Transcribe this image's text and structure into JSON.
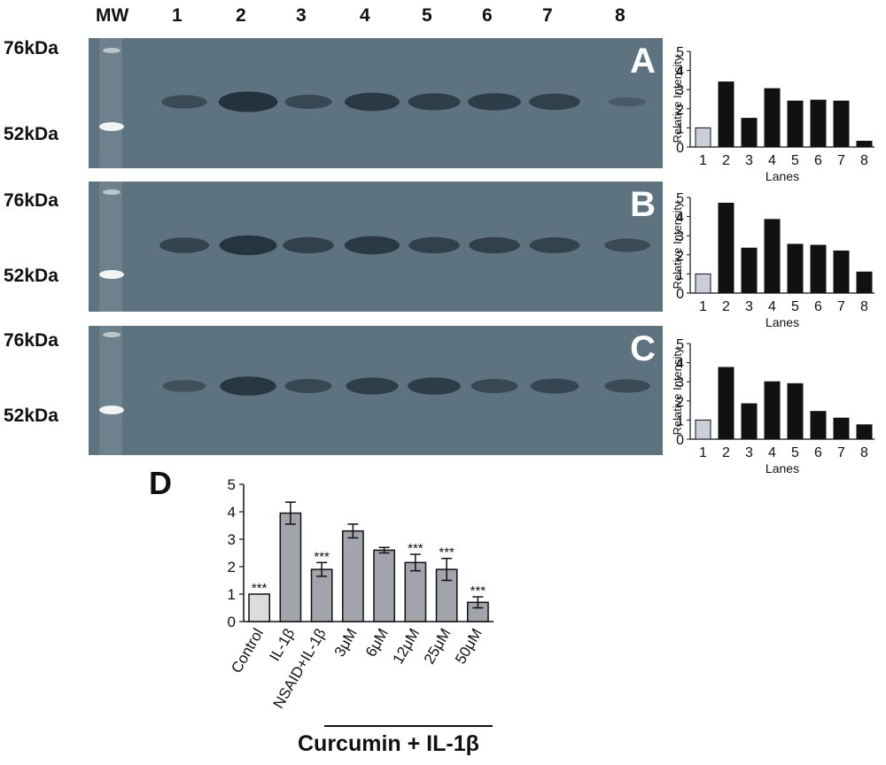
{
  "lane_header": {
    "mw": "MW",
    "lanes": [
      "1",
      "2",
      "3",
      "4",
      "5",
      "6",
      "7",
      "8"
    ]
  },
  "molecular_weights": {
    "upper": "76kDa",
    "lower": "52kDa"
  },
  "blots": [
    {
      "panel": "A",
      "band_intensity": [
        0.45,
        0.95,
        0.5,
        0.8,
        0.7,
        0.72,
        0.65,
        0.15
      ]
    },
    {
      "panel": "B",
      "band_intensity": [
        0.6,
        0.9,
        0.65,
        0.8,
        0.65,
        0.65,
        0.62,
        0.45
      ]
    },
    {
      "panel": "C",
      "band_intensity": [
        0.35,
        0.85,
        0.5,
        0.7,
        0.72,
        0.5,
        0.55,
        0.45
      ]
    }
  ],
  "colors": {
    "blot_bg": "#5e7380",
    "band": "#1e2c36",
    "control_bar": "#c9ced9",
    "dark_bar": "#111111",
    "d_bar": "#a1a4ab",
    "d_control_bar": "#dcdcdc"
  },
  "chart_data": [
    {
      "panel": "A",
      "type": "bar",
      "categories": [
        "1",
        "2",
        "3",
        "4",
        "5",
        "6",
        "7",
        "8"
      ],
      "values": [
        1.0,
        3.4,
        1.5,
        3.05,
        2.4,
        2.45,
        2.4,
        0.3
      ],
      "ylabel": "Relative Intensity",
      "xlabel": "Lanes",
      "ylim": [
        0,
        5
      ],
      "yticks": [
        "0",
        "1",
        "2",
        "3",
        "4",
        "5"
      ]
    },
    {
      "panel": "B",
      "type": "bar",
      "categories": [
        "1",
        "2",
        "3",
        "4",
        "5",
        "6",
        "7",
        "8"
      ],
      "values": [
        1.0,
        4.7,
        2.35,
        3.85,
        2.55,
        2.5,
        2.2,
        1.1
      ],
      "ylabel": "Relative Intensity",
      "xlabel": "Lanes",
      "ylim": [
        0,
        5
      ],
      "yticks": [
        "0",
        "1",
        "2",
        "3",
        "4",
        "5"
      ]
    },
    {
      "panel": "C",
      "type": "bar",
      "categories": [
        "1",
        "2",
        "3",
        "4",
        "5",
        "6",
        "7",
        "8"
      ],
      "values": [
        1.0,
        3.75,
        1.85,
        3.0,
        2.9,
        1.45,
        1.1,
        0.75
      ],
      "ylabel": "Relative Intensity",
      "xlabel": "Lanes",
      "ylim": [
        0,
        5
      ],
      "yticks": [
        "0",
        "1",
        "2",
        "3",
        "4",
        "5"
      ]
    },
    {
      "panel": "D",
      "type": "bar",
      "categories": [
        "Control",
        "IL-1β",
        "NSAID+IL-1β",
        "3μM",
        "6μM",
        "12μM",
        "25μM",
        "50μM"
      ],
      "values": [
        1.0,
        3.95,
        1.9,
        3.3,
        2.6,
        2.15,
        1.9,
        0.7
      ],
      "errors": [
        0.0,
        0.4,
        0.25,
        0.25,
        0.1,
        0.3,
        0.4,
        0.2
      ],
      "significance": [
        "***",
        "",
        "***",
        "",
        "",
        "***",
        "***",
        "***"
      ],
      "ylim": [
        0,
        5
      ],
      "yticks": [
        "0",
        "1",
        "2",
        "3",
        "4",
        "5"
      ],
      "group_label": "Curcumin + IL-1β"
    }
  ]
}
